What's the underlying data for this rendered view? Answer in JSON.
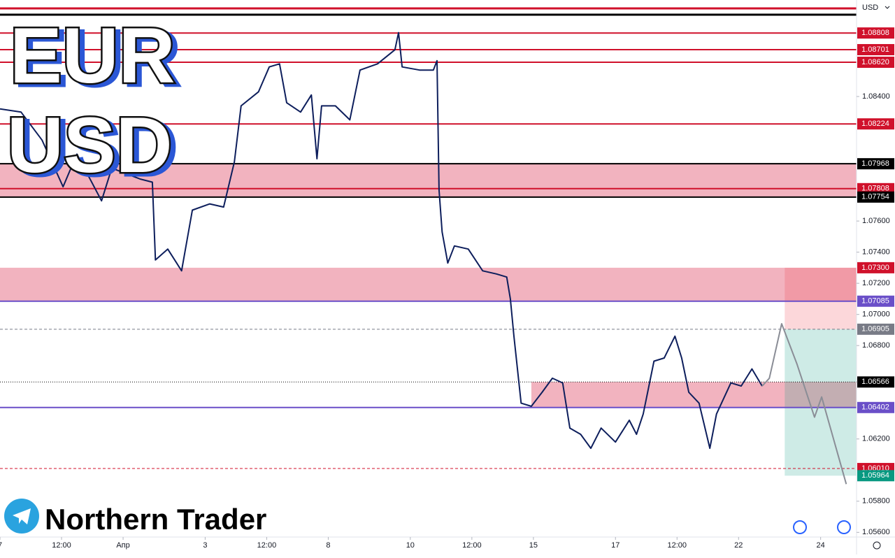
{
  "chart_data": {
    "type": "line",
    "currency": "USD",
    "logo_lines": [
      "EUR",
      "USD"
    ],
    "brand": "Northern Trader",
    "xlim": [
      0,
      167
    ],
    "ylim": [
      1.0557,
      1.0902
    ],
    "xticks": [
      {
        "value": 0,
        "label": "7"
      },
      {
        "value": 12,
        "label": "12:00"
      },
      {
        "value": 24,
        "label": "Апр"
      },
      {
        "value": 40,
        "label": "3"
      },
      {
        "value": 52,
        "label": "12:00"
      },
      {
        "value": 64,
        "label": "8"
      },
      {
        "value": 80,
        "label": "10"
      },
      {
        "value": 92,
        "label": "12:00"
      },
      {
        "value": 104,
        "label": "15"
      },
      {
        "value": 120,
        "label": "17"
      },
      {
        "value": 132,
        "label": "12:00"
      },
      {
        "value": 144,
        "label": "22"
      },
      {
        "value": 160,
        "label": "24"
      }
    ],
    "yticks": [
      {
        "value": 1.084,
        "label": "1.08400"
      },
      {
        "value": 1.076,
        "label": "1.07600"
      },
      {
        "value": 1.074,
        "label": "1.07400"
      },
      {
        "value": 1.072,
        "label": "1.07200"
      },
      {
        "value": 1.07,
        "label": "1.07000"
      },
      {
        "value": 1.068,
        "label": "1.06800"
      },
      {
        "value": 1.062,
        "label": "1.06200"
      },
      {
        "value": 1.058,
        "label": "1.05800"
      },
      {
        "value": 1.056,
        "label": "1.05600"
      }
    ],
    "levels": {
      "values": [
        1.08808,
        1.08701,
        1.0862,
        1.08224,
        1.07968,
        1.07808,
        1.07754,
        1.073,
        1.07085,
        1.06905,
        1.06566,
        1.06402,
        1.0601,
        1.05964
      ],
      "value_labels": [
        "1.08808",
        "1.08701",
        "1.08620",
        "1.08224",
        "1.07968",
        "1.07808",
        "1.07754",
        "1.07300",
        "1.07085",
        "1.06905",
        "1.06566",
        "1.06402",
        "1.06010",
        "1.05964"
      ],
      "colors": [
        "#d0112b",
        "#d0112b",
        "#d0112b",
        "#d0112b",
        "#000000",
        "#d0112b",
        "#000000",
        "#d0112b",
        "#6a4fc8",
        "#787b86",
        "#000000",
        "#6a4fc8",
        "#d0112b",
        "#089981"
      ],
      "line_styles": [
        "solid",
        "solid",
        "solid",
        "solid",
        "solid",
        "solid",
        "solid",
        "none",
        "solid",
        "dashed",
        "dotted",
        "solid",
        "dashed",
        "none"
      ]
    },
    "zones": [
      {
        "from": 1.07968,
        "to": 1.07754,
        "start": 0
      },
      {
        "from": 1.073,
        "to": 1.07085,
        "start": 0
      },
      {
        "from": 1.06566,
        "to": 1.06402,
        "start": 103.6
      }
    ],
    "position": {
      "start": 153,
      "stop": 1.073,
      "entry": 1.06905,
      "target": 1.05964
    },
    "series": [
      {
        "name": "EURUSD",
        "color": "#0d1e5c",
        "x": [
          0,
          4.1,
          8.2,
          12.3,
          15,
          19.8,
          21.8,
          27.3,
          29.7,
          30.3,
          32.7,
          35.4,
          37.5,
          40.9,
          43.6,
          45.7,
          47,
          50.4,
          52.5,
          54.5,
          55.9,
          58.6,
          60.7,
          61.8,
          62.7,
          65.4,
          68.2,
          70.2,
          73.6,
          77,
          77.7,
          78.4,
          81.8,
          84.5,
          85.2,
          85.6,
          86.2,
          87.3,
          88.6,
          91.3,
          94.1,
          96.8,
          98.8,
          99.5,
          100.2,
          101.6,
          103.6,
          105.7,
          107.7,
          109.7,
          111.1,
          113.2,
          115.2,
          117.2,
          120,
          122.7,
          124.1,
          125.4,
          127.5,
          129.5,
          131.6,
          132.9,
          134.3,
          136.3,
          138.4,
          139.7,
          142.5,
          144.5,
          146.6,
          148.6
        ],
        "values": [
          1.0832,
          1.083,
          1.0812,
          1.0782,
          1.0803,
          1.0773,
          1.0794,
          1.0787,
          1.0785,
          1.0735,
          1.0742,
          1.0728,
          1.0767,
          1.0771,
          1.0769,
          1.0798,
          1.0834,
          1.0843,
          1.0859,
          1.0861,
          1.0836,
          1.083,
          1.0841,
          1.08,
          1.0834,
          1.0834,
          1.0825,
          1.0857,
          1.0861,
          1.087,
          1.0881,
          1.0859,
          1.0857,
          1.0857,
          1.0863,
          1.078,
          1.0753,
          1.0733,
          1.0744,
          1.0742,
          1.0728,
          1.0726,
          1.0724,
          1.071,
          1.0686,
          1.0643,
          1.0641,
          1.065,
          1.0659,
          1.0656,
          1.0627,
          1.0623,
          1.0614,
          1.0627,
          1.0618,
          1.0632,
          1.0623,
          1.0636,
          1.067,
          1.0672,
          1.0686,
          1.0672,
          1.065,
          1.0643,
          1.0614,
          1.0636,
          1.0656,
          1.0654,
          1.0665,
          1.0654
        ]
      },
      {
        "name": "Projection",
        "color": "#8a8d96",
        "x": [
          148.6,
          150,
          152.4,
          155.4,
          158.8,
          160.2,
          165
        ],
        "values": [
          1.0654,
          1.0659,
          1.0694,
          1.0668,
          1.0634,
          1.0647,
          1.0591
        ]
      }
    ]
  }
}
